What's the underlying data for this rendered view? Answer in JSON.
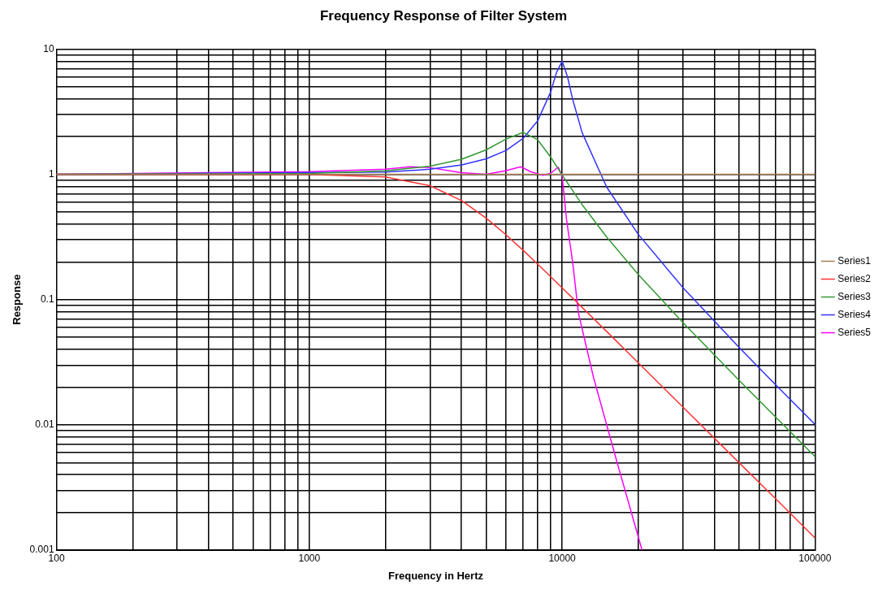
{
  "chart_data": {
    "type": "line",
    "title": "Frequency Response of Filter System",
    "xlabel": "Frequency in Hertz",
    "ylabel": "Response",
    "log": "xy",
    "grid": true,
    "legend": "right",
    "xlim": [
      100,
      100000
    ],
    "ylim": [
      0.001,
      10
    ],
    "xticks": [
      100,
      {
        "value": 200,
        "label": null
      },
      {
        "value": 300,
        "label": null
      },
      {
        "value": 400,
        "label": null
      },
      {
        "value": 500,
        "label": null
      },
      {
        "value": 600,
        "label": null
      },
      {
        "value": 700,
        "label": null
      },
      {
        "value": 800,
        "label": null
      },
      {
        "value": 900,
        "label": null
      },
      1000,
      {
        "value": 2000,
        "label": null
      },
      {
        "value": 3000,
        "label": null
      },
      {
        "value": 4000,
        "label": null
      },
      {
        "value": 5000,
        "label": null
      },
      {
        "value": 6000,
        "label": null
      },
      {
        "value": 7000,
        "label": null
      },
      {
        "value": 8000,
        "label": null
      },
      {
        "value": 9000,
        "label": null
      },
      10000,
      {
        "value": 20000,
        "label": null
      },
      {
        "value": 30000,
        "label": null
      },
      {
        "value": 40000,
        "label": null
      },
      {
        "value": 50000,
        "label": null
      },
      {
        "value": 60000,
        "label": null
      },
      {
        "value": 70000,
        "label": null
      },
      {
        "value": 80000,
        "label": null
      },
      {
        "value": 90000,
        "label": null
      },
      100000
    ],
    "yticks": [
      0.001,
      {
        "value": 0.002,
        "label": null
      },
      {
        "value": 0.003,
        "label": null
      },
      {
        "value": 0.004,
        "label": null
      },
      {
        "value": 0.005,
        "label": null
      },
      {
        "value": 0.006,
        "label": null
      },
      {
        "value": 0.007,
        "label": null
      },
      {
        "value": 0.008,
        "label": null
      },
      {
        "value": 0.009,
        "label": null
      },
      0.01,
      {
        "value": 0.02,
        "label": null
      },
      {
        "value": 0.03,
        "label": null
      },
      {
        "value": 0.04,
        "label": null
      },
      {
        "value": 0.05,
        "label": null
      },
      {
        "value": 0.06,
        "label": null
      },
      {
        "value": 0.07,
        "label": null
      },
      {
        "value": 0.08,
        "label": null
      },
      {
        "value": 0.09,
        "label": null
      },
      0.1,
      {
        "value": 0.2,
        "label": null
      },
      {
        "value": 0.3,
        "label": null
      },
      {
        "value": 0.4,
        "label": null
      },
      {
        "value": 0.5,
        "label": null
      },
      {
        "value": 0.6,
        "label": null
      },
      {
        "value": 0.7,
        "label": null
      },
      {
        "value": 0.8,
        "label": null
      },
      {
        "value": 0.9,
        "label": null
      },
      1,
      {
        "value": 2,
        "label": null
      },
      {
        "value": 3,
        "label": null
      },
      {
        "value": 4,
        "label": null
      },
      {
        "value": 5,
        "label": null
      },
      {
        "value": 6,
        "label": null
      },
      {
        "value": 7,
        "label": null
      },
      {
        "value": 8,
        "label": null
      },
      {
        "value": 9,
        "label": null
      },
      10
    ],
    "series": [
      {
        "name": "Series1",
        "color": "#a57c52",
        "x": [
          100,
          100000
        ],
        "values": [
          1,
          1
        ]
      },
      {
        "name": "Series2",
        "color": "#ff3333",
        "x": [
          100,
          1000,
          2000,
          3000,
          4000,
          5000,
          6000,
          7000,
          8000,
          10000,
          15000,
          20000,
          30000,
          50000,
          70000,
          100000
        ],
        "values": [
          1,
          0.997,
          0.953,
          0.812,
          0.617,
          0.448,
          0.329,
          0.248,
          0.192,
          0.124,
          0.0557,
          0.0313,
          0.0139,
          0.00501,
          0.00256,
          0.00125
        ]
      },
      {
        "name": "Series3",
        "color": "#339933",
        "x": [
          100,
          1000,
          2000,
          3000,
          4000,
          5000,
          6000,
          7000,
          8000,
          9000,
          10000,
          12000,
          15000,
          20000,
          30000,
          50000,
          70000,
          100000
        ],
        "values": [
          1,
          1.016,
          1.067,
          1.162,
          1.319,
          1.567,
          1.914,
          2.162,
          1.89,
          1.375,
          0.988,
          0.572,
          0.316,
          0.159,
          0.0657,
          0.0228,
          0.0115,
          0.0056
        ]
      },
      {
        "name": "Series4",
        "color": "#3333ff",
        "x": [
          100,
          2000,
          3000,
          4000,
          5000,
          6000,
          7000,
          8000,
          9000,
          9500,
          10000,
          10500,
          11000,
          12000,
          15000,
          20000,
          30000,
          50000,
          70000,
          100000
        ],
        "values": [
          1,
          1.041,
          1.098,
          1.189,
          1.328,
          1.552,
          1.933,
          2.675,
          4.53,
          6.51,
          8,
          6.01,
          3.98,
          2.149,
          0.791,
          0.332,
          0.125,
          0.0417,
          0.0208,
          0.0101
        ]
      },
      {
        "name": "Series5",
        "color": "#ff00ff",
        "x": [
          100,
          1000,
          2000,
          2500,
          3000,
          4000,
          5000,
          6000,
          6850,
          7500,
          8400,
          9000,
          9650,
          10000,
          10400,
          11000,
          11600,
          13300,
          16500,
          20700
        ],
        "values": [
          1,
          1.05,
          1.1,
          1.15,
          1.13,
          1.03,
          1,
          1.07,
          1.15,
          1.05,
          0.98,
          1.02,
          1.14,
          0.97,
          0.44,
          0.2,
          0.078,
          0.024,
          0.005,
          0.001
        ]
      }
    ]
  }
}
